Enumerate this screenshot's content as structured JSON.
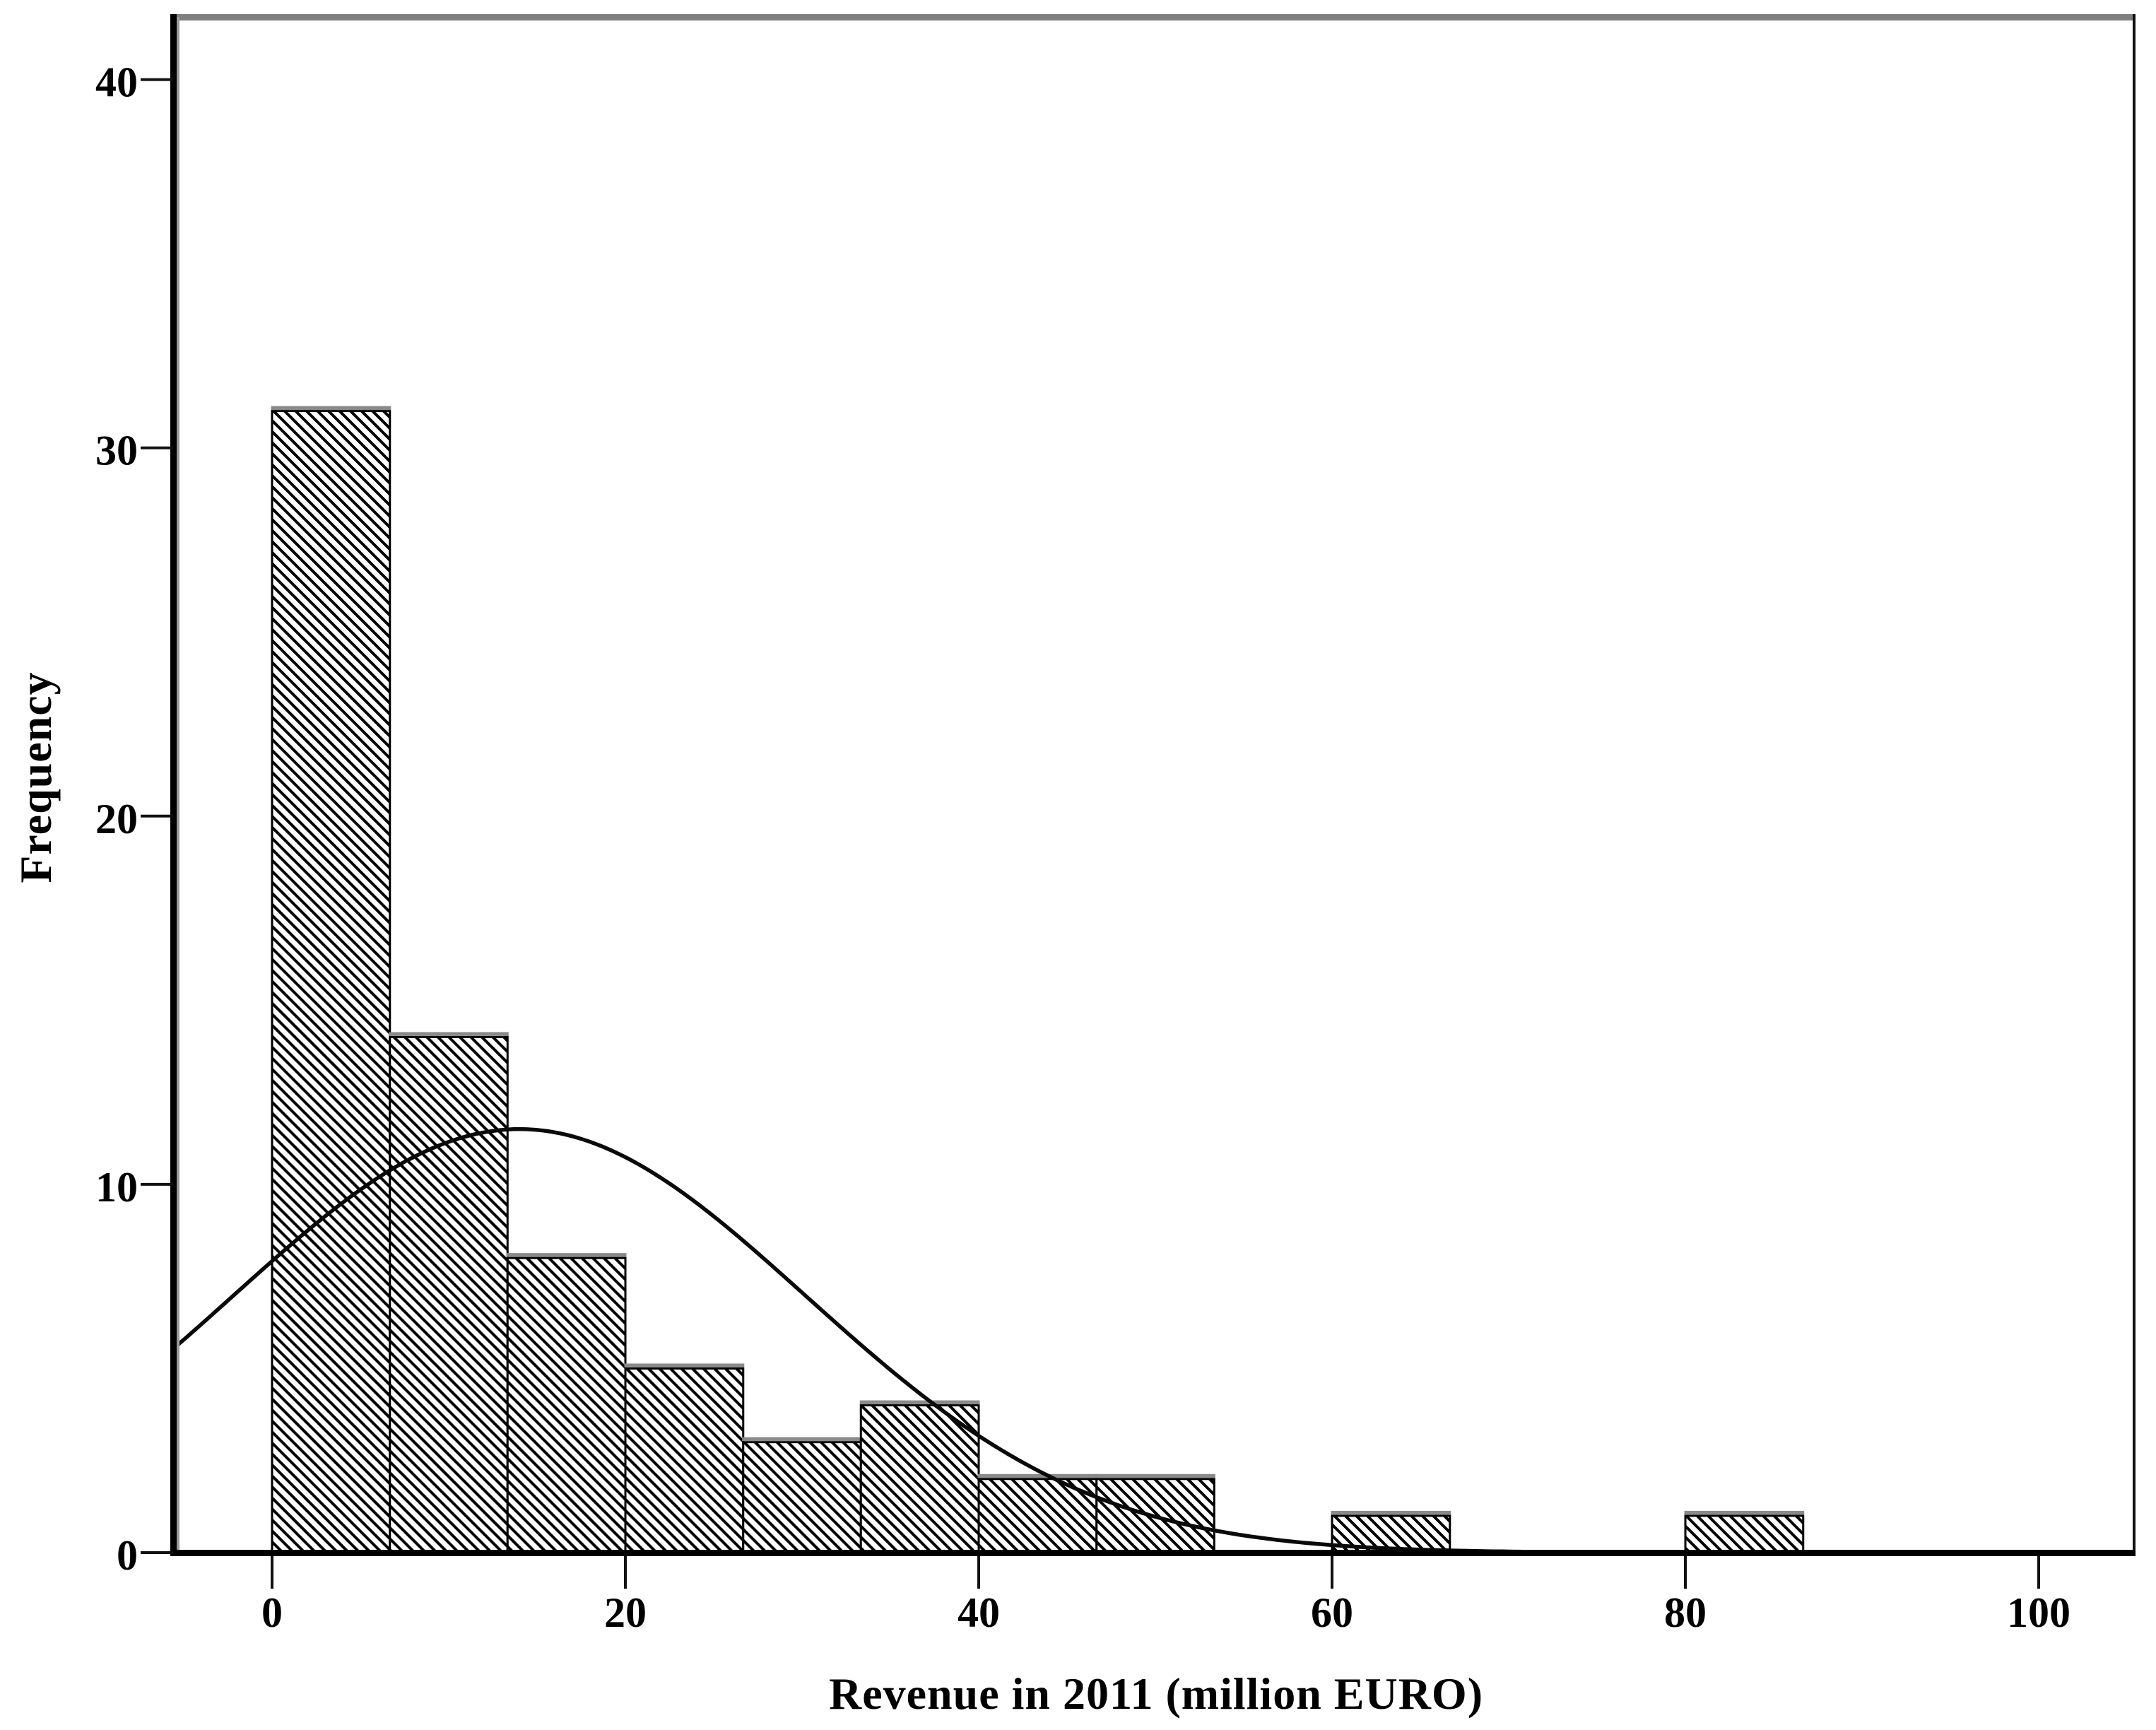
{
  "figure": {
    "background": "#ffffff"
  },
  "chart_data": {
    "type": "bar",
    "subtype": "histogram-with-normal-curve",
    "title": "",
    "xlabel": "Revenue in 2011 (million EURO)",
    "ylabel": "Frequency",
    "x_ticks": [
      0,
      20,
      40,
      60,
      80,
      100
    ],
    "y_ticks": [
      0,
      10,
      20,
      30,
      40
    ],
    "xlim": [
      -5.6,
      105.4
    ],
    "ylim": [
      0,
      41.7
    ],
    "grid": "off",
    "legend": "none",
    "bin_width": 6.67,
    "bars": [
      {
        "bin_start": 0,
        "bin_end": 6.67,
        "count": 31
      },
      {
        "bin_start": 6.67,
        "bin_end": 13.33,
        "count": 14
      },
      {
        "bin_start": 13.33,
        "bin_end": 20,
        "count": 8
      },
      {
        "bin_start": 20,
        "bin_end": 26.67,
        "count": 5
      },
      {
        "bin_start": 26.67,
        "bin_end": 33.33,
        "count": 3
      },
      {
        "bin_start": 33.33,
        "bin_end": 40,
        "count": 4
      },
      {
        "bin_start": 40,
        "bin_end": 46.67,
        "count": 2
      },
      {
        "bin_start": 46.67,
        "bin_end": 53.33,
        "count": 2
      },
      {
        "bin_start": 53.33,
        "bin_end": 60,
        "count": 0
      },
      {
        "bin_start": 60,
        "bin_end": 66.67,
        "count": 1
      },
      {
        "bin_start": 66.67,
        "bin_end": 73.33,
        "count": 0
      },
      {
        "bin_start": 73.33,
        "bin_end": 80,
        "count": 0
      },
      {
        "bin_start": 80,
        "bin_end": 86.67,
        "count": 1
      }
    ],
    "total_n": 71,
    "normal_curve": {
      "mean": 14,
      "sd": 16.2,
      "peak": 11.5
    },
    "colors": {
      "bar_fill_pattern": "black-diagonal-hatch-on-white",
      "bar_border": "#000000",
      "bar_top_cap": "#8a8a8a",
      "curve": "#0a0a0a",
      "axis": "#000000",
      "tick": "#111111",
      "frame_top": "#7f7f7f",
      "frame_right": "#111111",
      "axis_inner_highlight": "#9a9a9a",
      "text": "#000000"
    }
  }
}
